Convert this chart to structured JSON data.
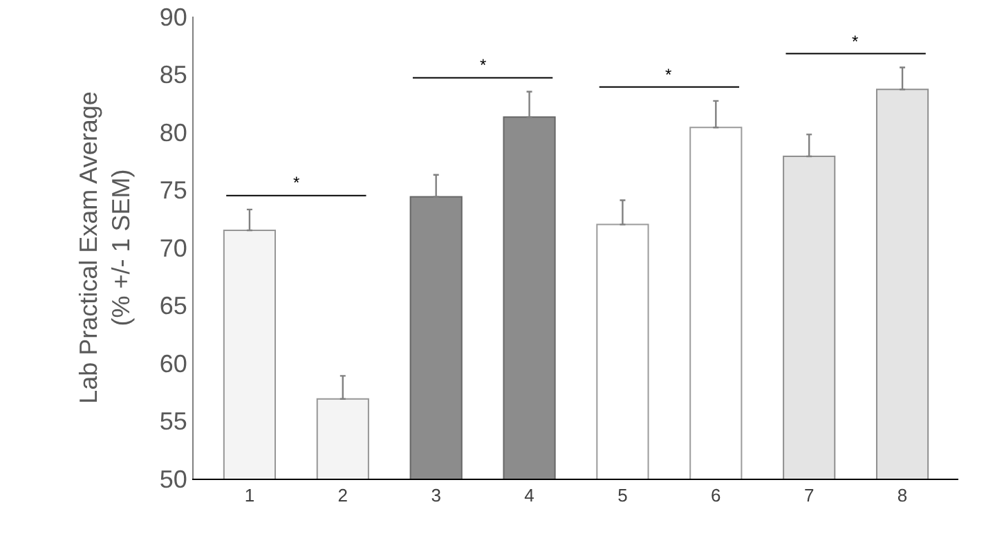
{
  "chart_data": {
    "type": "bar",
    "ylabel": "Lab Practical Exam Average\n(% +/- 1 SEM)",
    "categories": [
      "1",
      "2",
      "3",
      "4",
      "5",
      "6",
      "7",
      "8"
    ],
    "values": [
      71.5,
      56.9,
      74.4,
      81.3,
      72.0,
      80.4,
      77.9,
      83.7
    ],
    "colors": [
      "#f4f4f4",
      "#f4f4f4",
      "#8c8c8c",
      "#8c8c8c",
      "#ffffff",
      "#ffffff",
      "#e4e4e4",
      "#e4e4e4"
    ],
    "errors": [
      [
        71.5,
        73.3
      ],
      [
        56.9,
        58.9
      ],
      [
        74.4,
        76.3
      ],
      [
        81.3,
        83.5
      ],
      [
        72.0,
        74.1
      ],
      [
        80.4,
        82.7
      ],
      [
        77.9,
        79.8
      ],
      [
        83.7,
        85.6
      ]
    ],
    "ylim": [
      50,
      90
    ],
    "yticks": [
      50,
      55,
      60,
      65,
      70,
      75,
      80,
      85,
      90
    ],
    "grid": false,
    "annotations": [
      "*",
      "*",
      "*",
      "*"
    ]
  }
}
